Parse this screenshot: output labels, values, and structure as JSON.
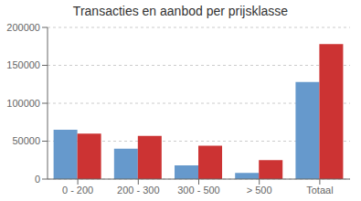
{
  "chart_data": {
    "type": "bar",
    "title": "Transacties en aanbod per prijsklasse",
    "categories": [
      "0 - 200",
      "200 - 300",
      "300 - 500",
      "> 500",
      "Totaal"
    ],
    "series": [
      {
        "color": "#6699cc",
        "values": [
          65000,
          40000,
          18000,
          8000,
          128000
        ]
      },
      {
        "color": "#cc3333",
        "values": [
          60000,
          57000,
          44000,
          25000,
          178000
        ]
      }
    ],
    "ylim": [
      0,
      200000
    ],
    "yticks": [
      0,
      50000,
      100000,
      150000,
      200000
    ],
    "grid": true
  }
}
